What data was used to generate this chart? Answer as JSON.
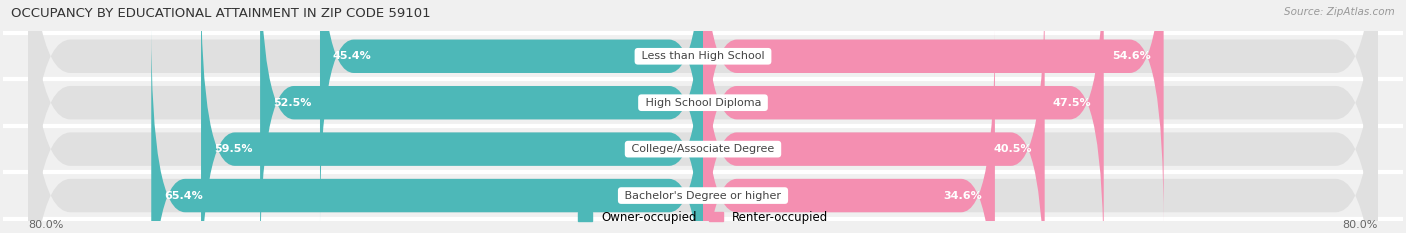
{
  "title": "OCCUPANCY BY EDUCATIONAL ATTAINMENT IN ZIP CODE 59101",
  "source": "Source: ZipAtlas.com",
  "categories": [
    "Less than High School",
    "High School Diploma",
    "College/Associate Degree",
    "Bachelor's Degree or higher"
  ],
  "owner_values": [
    45.4,
    52.5,
    59.5,
    65.4
  ],
  "renter_values": [
    54.6,
    47.5,
    40.5,
    34.6
  ],
  "owner_color": "#4db8b8",
  "renter_color": "#f48fb1",
  "owner_label": "Owner-occupied",
  "renter_label": "Renter-occupied",
  "x_min": -80.0,
  "x_max": 80.0,
  "axis_label_left": "80.0%",
  "axis_label_right": "80.0%",
  "background_color": "#f0f0f0",
  "bar_background": "#e0e0e0",
  "bar_height": 0.72,
  "row_sep_color": "#ffffff"
}
